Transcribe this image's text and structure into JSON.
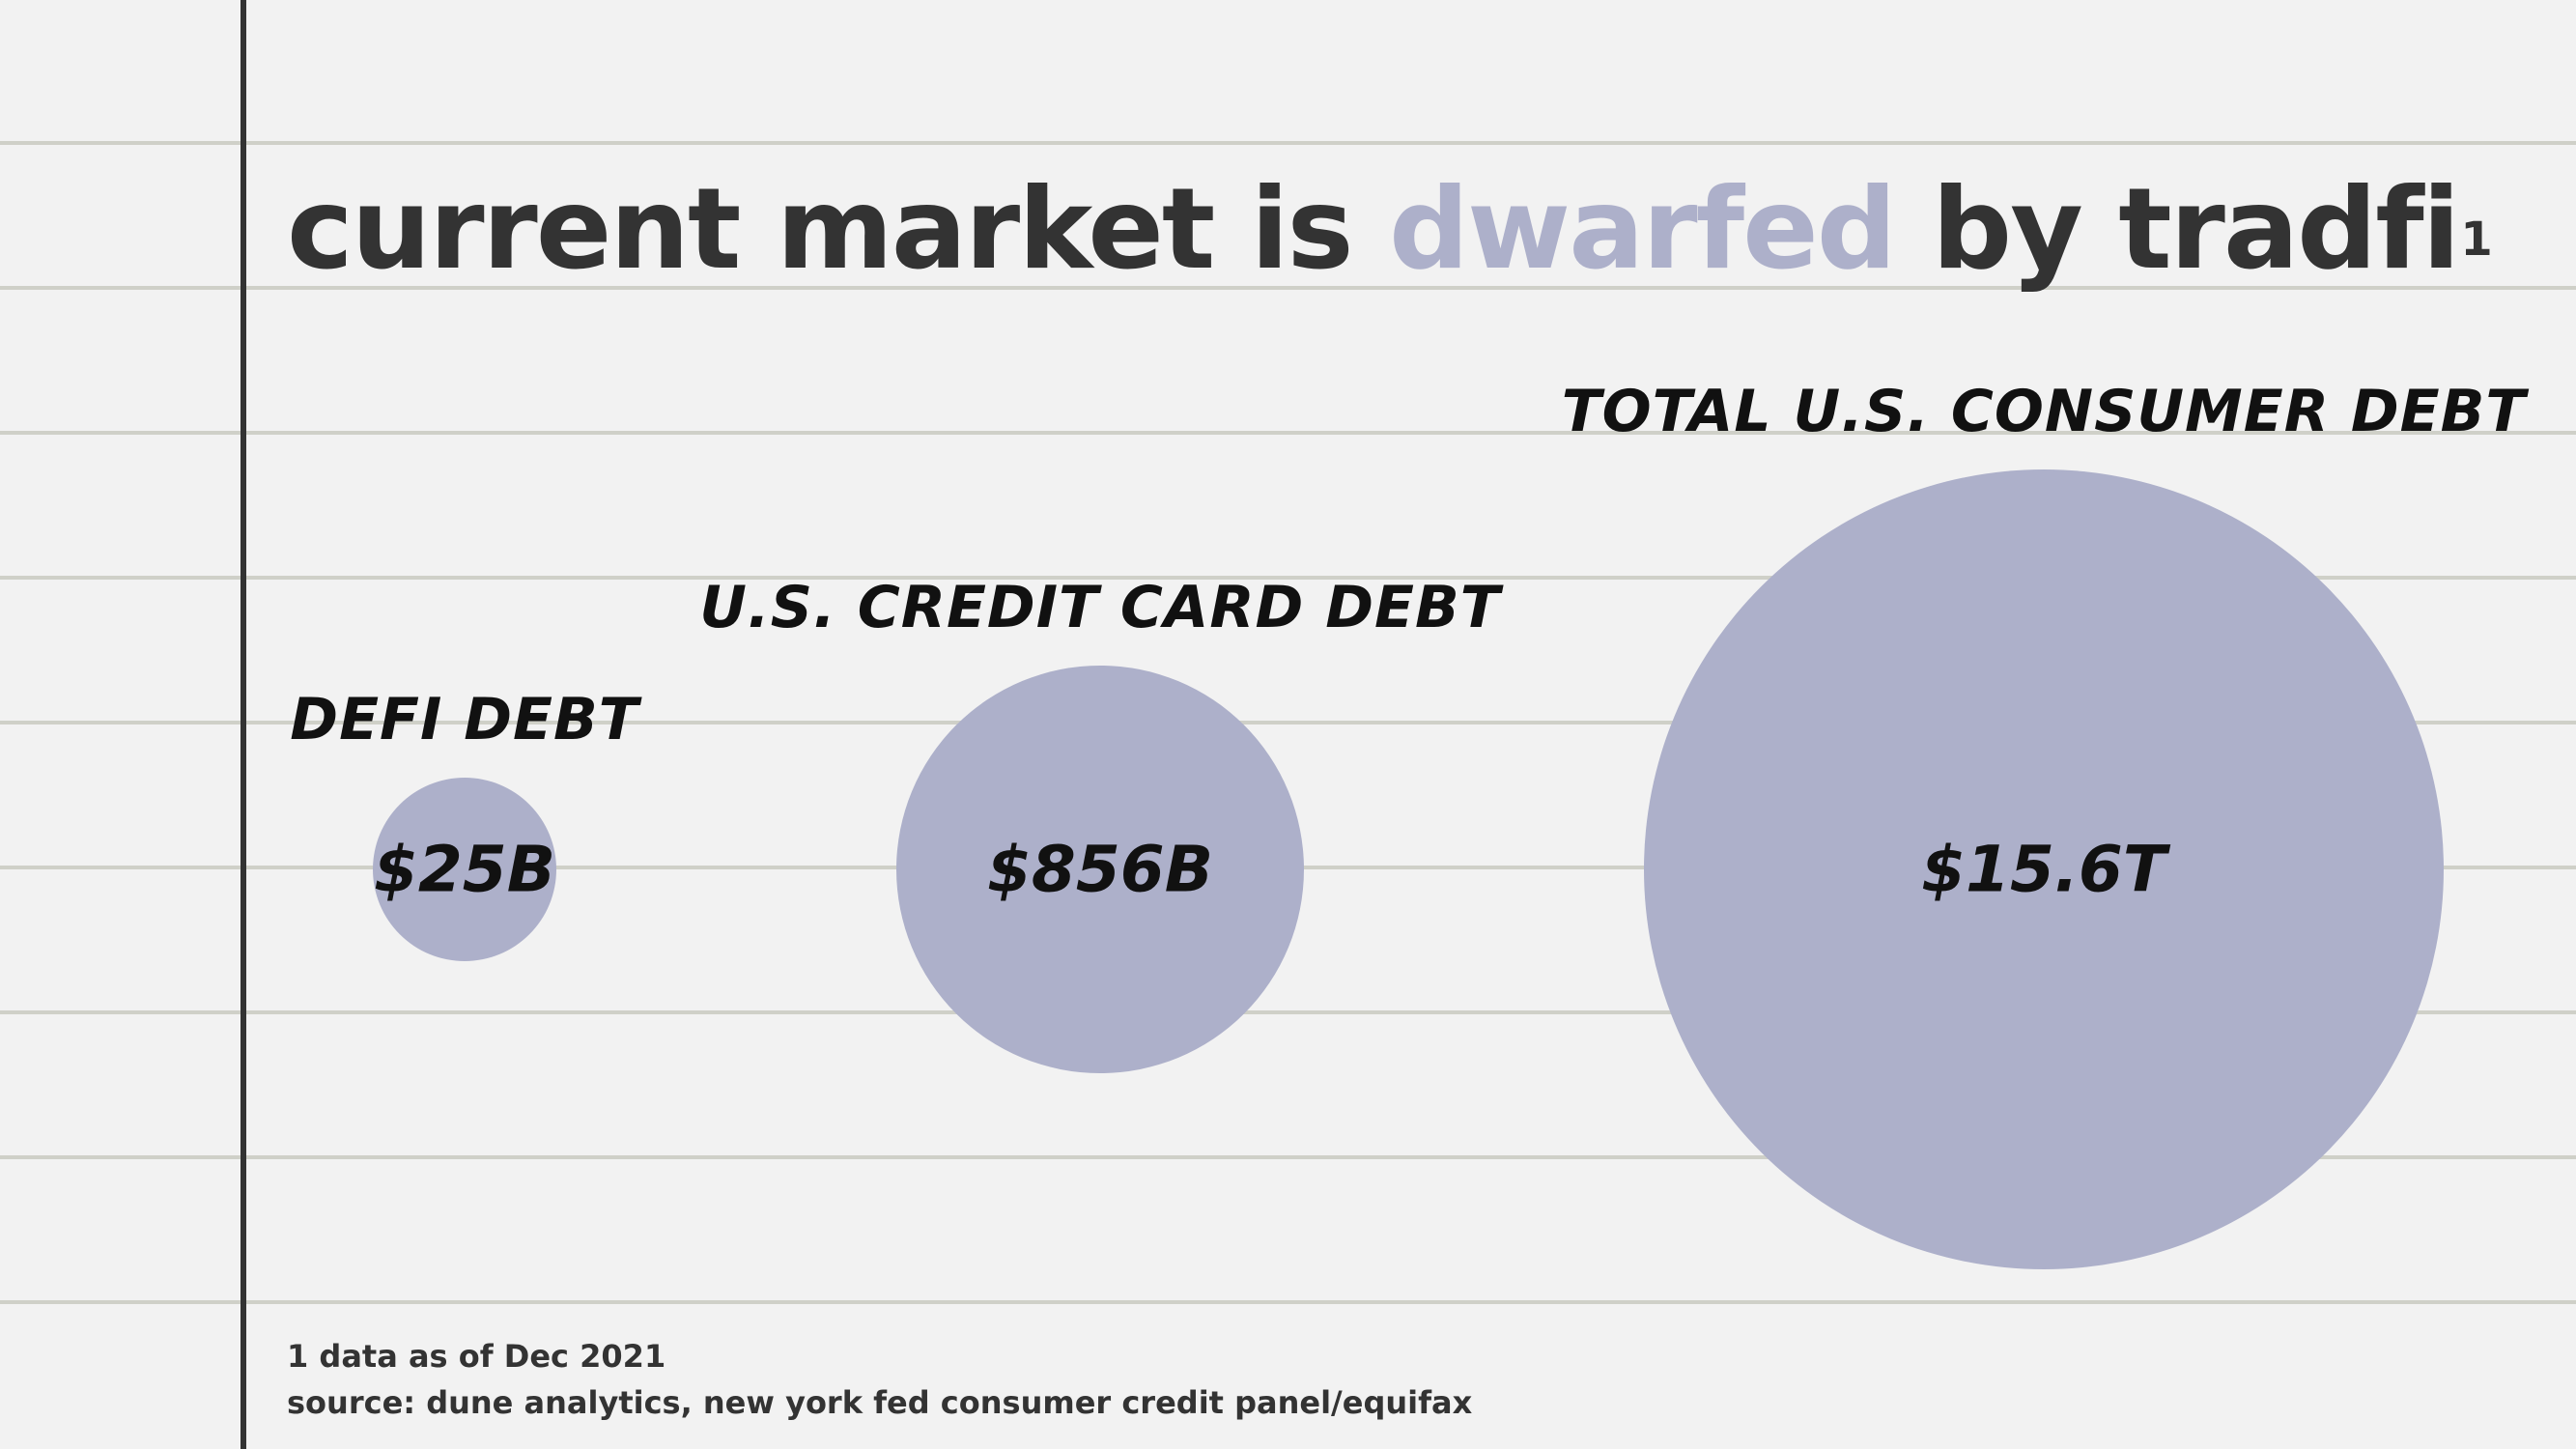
{
  "title": {
    "part1": "current market is ",
    "accent": "dwarfed",
    "part2": " by tradfi",
    "footnote_marker": "1"
  },
  "colors": {
    "background": "#f2f2f2",
    "rule_line": "#cfd0c8",
    "margin_line": "#333333",
    "bubble": "#adb0ca",
    "text_dark": "#333333"
  },
  "chart_data": {
    "type": "bubble",
    "unit": "USD",
    "series": [
      {
        "label": "DEFI DEBT",
        "display_value": "$25B",
        "value": 25000000000
      },
      {
        "label": "U.S. CREDIT CARD DEBT",
        "display_value": "$856B",
        "value": 856000000000
      },
      {
        "label": "TOTAL U.S. CONSUMER DEBT",
        "display_value": "$15.6T",
        "value": 15600000000000
      }
    ]
  },
  "footnotes": {
    "note": "1 data as of Dec 2021",
    "source": "source: dune analytics, new york fed consumer credit panel/equifax"
  }
}
